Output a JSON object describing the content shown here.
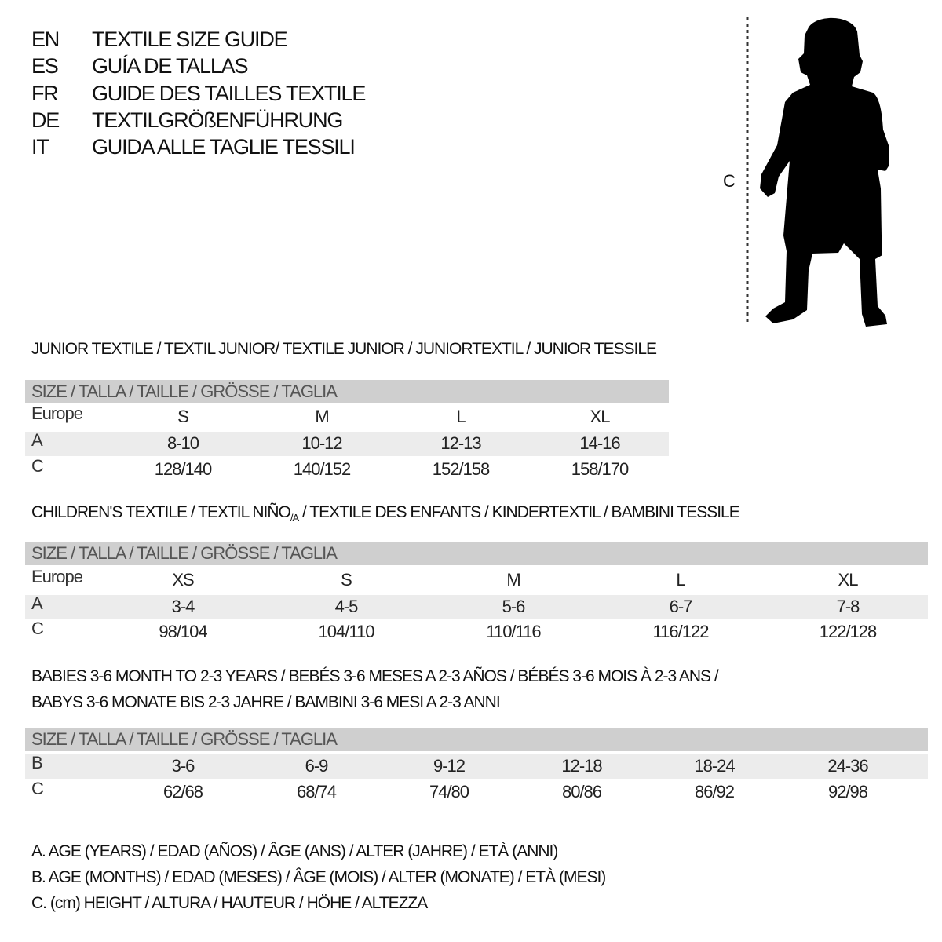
{
  "languages": [
    {
      "code": "EN",
      "text": "TEXTILE SIZE GUIDE"
    },
    {
      "code": "ES",
      "text": "GUÍA DE TALLAS"
    },
    {
      "code": "FR",
      "text": "GUIDE DES TAILLES TEXTILE"
    },
    {
      "code": "DE",
      "text": "TEXTILGRÖßENFÜHRUNG"
    },
    {
      "code": "IT",
      "text": "GUIDA ALLE TAGLIE TESSILI"
    }
  ],
  "figure": {
    "label": "C",
    "icon": "child-silhouette-icon"
  },
  "junior": {
    "title": "JUNIOR TEXTILE / TEXTIL JUNIOR/ TEXTILE JUNIOR / JUNIORTEXTIL / JUNIOR TESSILE",
    "header": "SIZE / TALLA / TAILLE / GRÖSSE / TAGLIA",
    "rows": [
      {
        "label": "Europe",
        "values": [
          "S",
          "M",
          "L",
          "XL"
        ]
      },
      {
        "label": "A",
        "values": [
          "8-10",
          "10-12",
          "12-13",
          "14-16"
        ]
      },
      {
        "label": "C",
        "values": [
          "128/140",
          "140/152",
          "152/158",
          "158/170"
        ]
      }
    ]
  },
  "children": {
    "title_pre": "CHILDREN'S TEXTILE / TEXTIL NIÑO",
    "title_sub": "/A",
    "title_post": " / TEXTILE DES ENFANTS / KINDERTEXTIL / BAMBINI TESSILE",
    "header": "SIZE / TALLA / TAILLE / GRÖSSE / TAGLIA",
    "rows": [
      {
        "label": "Europe",
        "values": [
          "XS",
          "S",
          "M",
          "L",
          "XL"
        ]
      },
      {
        "label": "A",
        "values": [
          "3-4",
          "4-5",
          "5-6",
          "6-7",
          "7-8"
        ]
      },
      {
        "label": "C",
        "values": [
          "98/104",
          "104/110",
          "110/116",
          "116/122",
          "122/128"
        ]
      }
    ]
  },
  "babies": {
    "title_line1": "BABIES 3-6 MONTH TO 2-3 YEARS / BEBÉS 3-6 MESES A 2-3 AÑOS / BÉBÉS 3-6 MOIS À 2-3 ANS /",
    "title_line2": "BABYS 3-6 MONATE BIS 2-3 JAHRE / BAMBINI 3-6 MESI A 2-3 ANNI",
    "header": "SIZE / TALLA / TAILLE / GRÖSSE / TAGLIA",
    "rows": [
      {
        "label": "B",
        "values": [
          "3-6",
          "6-9",
          "9-12",
          "12-18",
          "18-24",
          "24-36"
        ]
      },
      {
        "label": "C",
        "values": [
          "62/68",
          "68/74",
          "74/80",
          "80/86",
          "86/92",
          "92/98"
        ]
      }
    ]
  },
  "legend": [
    "A. AGE (YEARS) / EDAD (AÑOS) / ÂGE (ANS) / ALTER (JAHRE) / ETÀ (ANNI)",
    "B. AGE (MONTHS) / EDAD (MESES) / ÂGE (MOIS) / ALTER (MONATE) / ETÀ (MESI)",
    "C. (cm) HEIGHT / ALTURA / HAUTEUR / HÖHE / ALTEZZA"
  ],
  "colors": {
    "header_bg": "#cfcfcf",
    "band_bg": "#ececec"
  }
}
